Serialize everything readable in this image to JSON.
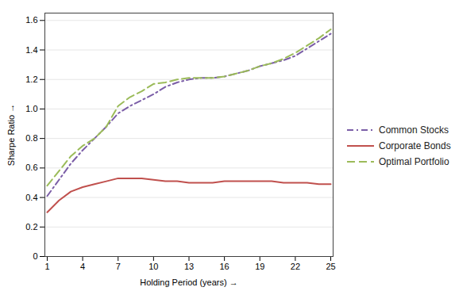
{
  "chart_data": {
    "type": "line",
    "xlabel": "Holding Period (years)",
    "ylabel": "Sharpe Ratio",
    "x": [
      1,
      2,
      3,
      4,
      5,
      6,
      7,
      8,
      9,
      10,
      11,
      12,
      13,
      14,
      15,
      16,
      17,
      18,
      19,
      20,
      21,
      22,
      23,
      24,
      25
    ],
    "series": [
      {
        "name": "Common Stocks",
        "color": "#7B5EA7",
        "line_style": "dashdot",
        "values": [
          0.41,
          0.52,
          0.63,
          0.72,
          0.8,
          0.88,
          0.97,
          1.02,
          1.06,
          1.1,
          1.15,
          1.18,
          1.2,
          1.21,
          1.21,
          1.22,
          1.24,
          1.26,
          1.29,
          1.31,
          1.33,
          1.36,
          1.41,
          1.46,
          1.51
        ]
      },
      {
        "name": "Corporate Bonds",
        "color": "#C0504D",
        "line_style": "solid",
        "values": [
          0.3,
          0.38,
          0.44,
          0.47,
          0.49,
          0.51,
          0.53,
          0.53,
          0.53,
          0.52,
          0.51,
          0.51,
          0.5,
          0.5,
          0.5,
          0.51,
          0.51,
          0.51,
          0.51,
          0.51,
          0.5,
          0.5,
          0.5,
          0.49,
          0.49
        ]
      },
      {
        "name": "Optimal Portfolio",
        "color": "#9BBB59",
        "line_style": "dashed",
        "values": [
          0.48,
          0.58,
          0.68,
          0.75,
          0.8,
          0.88,
          1.02,
          1.08,
          1.12,
          1.17,
          1.18,
          1.2,
          1.21,
          1.21,
          1.21,
          1.22,
          1.24,
          1.26,
          1.29,
          1.31,
          1.34,
          1.38,
          1.43,
          1.48,
          1.54
        ]
      }
    ],
    "xlim": [
      0.8,
      25.2
    ],
    "xticks": [
      1,
      4,
      7,
      10,
      13,
      16,
      19,
      22,
      25
    ],
    "ylim": [
      0,
      1.65
    ],
    "yticks": [
      0,
      0.2,
      0.4,
      0.6,
      0.8,
      {
        "value": 1,
        "label": "1.0"
      },
      1.2,
      1.4,
      1.6
    ],
    "grid": "y",
    "legend": "right"
  }
}
